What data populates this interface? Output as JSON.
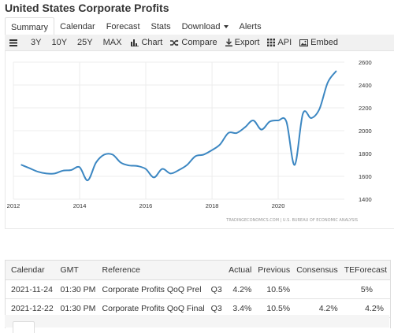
{
  "page": {
    "title": "United States Corporate Profits"
  },
  "tabs": [
    {
      "label": "Summary"
    },
    {
      "label": "Calendar"
    },
    {
      "label": "Forecast"
    },
    {
      "label": "Stats"
    },
    {
      "label": "Download"
    },
    {
      "label": "Alerts"
    }
  ],
  "toolbar": {
    "range_3y": "3Y",
    "range_10y": "10Y",
    "range_25y": "25Y",
    "range_max": "MAX",
    "chart": "Chart",
    "compare": "Compare",
    "export": "Export",
    "api": "API",
    "embed": "Embed"
  },
  "chart_data": {
    "type": "line",
    "title": "",
    "xlabel": "",
    "ylabel": "",
    "x_ticks": [
      "2012",
      "2014",
      "2016",
      "2018",
      "2020"
    ],
    "y_ticks": [
      1400,
      1600,
      1800,
      2000,
      2200,
      2400,
      2600
    ],
    "ylim": [
      1400,
      2600
    ],
    "xlim": [
      "2012-01-01",
      "2021-12-31"
    ],
    "y_axis_position": "right",
    "grid": {
      "horizontal": true,
      "vertical": true
    },
    "line_color": "#3c87c2",
    "source_credit": "TRADINGECONOMICS.COM | U.S. BUREAU OF ECONOMIC ANALYSIS",
    "series": [
      {
        "x": [
          "2012-03-31",
          "2012-06-30",
          "2012-09-30",
          "2012-12-31",
          "2013-03-31",
          "2013-06-30",
          "2013-09-30",
          "2013-12-31",
          "2014-03-31",
          "2014-06-30",
          "2014-09-30",
          "2014-12-31",
          "2015-03-31",
          "2015-06-30",
          "2015-09-30",
          "2015-12-31",
          "2016-03-31",
          "2016-06-30",
          "2016-09-30",
          "2016-12-31",
          "2017-03-31",
          "2017-06-30",
          "2017-09-30",
          "2017-12-31",
          "2018-03-31",
          "2018-06-30",
          "2018-09-30",
          "2018-12-31",
          "2019-03-31",
          "2019-06-30",
          "2019-09-30",
          "2019-12-31",
          "2020-03-31",
          "2020-06-30",
          "2020-09-30",
          "2020-12-31",
          "2021-03-31",
          "2021-06-30",
          "2021-09-30"
        ],
        "values": [
          1700,
          1670,
          1640,
          1625,
          1625,
          1650,
          1655,
          1680,
          1565,
          1720,
          1790,
          1790,
          1720,
          1695,
          1690,
          1665,
          1590,
          1665,
          1625,
          1655,
          1700,
          1775,
          1790,
          1830,
          1880,
          1980,
          1980,
          2030,
          2090,
          2010,
          2080,
          2090,
          2080,
          1700,
          2150,
          2110,
          2190,
          2420,
          2520
        ]
      }
    ]
  },
  "calendar": {
    "headers": [
      "Calendar",
      "GMT",
      "Reference",
      "",
      "Actual",
      "Previous",
      "Consensus",
      "TEForecast"
    ],
    "rows": [
      [
        "2021-11-24",
        "01:30 PM",
        "Corporate Profits QoQ Prel",
        "Q3",
        "4.2%",
        "10.5%",
        "",
        "5%"
      ],
      [
        "2021-12-22",
        "01:30 PM",
        "Corporate Profits QoQ Final",
        "Q3",
        "3.4%",
        "10.5%",
        "4.2%",
        "4.2%"
      ]
    ]
  }
}
